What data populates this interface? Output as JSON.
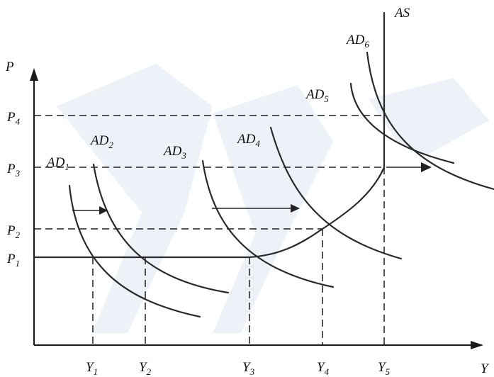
{
  "axes": {
    "y_label": "P",
    "x_label": "Y"
  },
  "price_levels": [
    {
      "main": "P",
      "sub": "1"
    },
    {
      "main": "P",
      "sub": "2"
    },
    {
      "main": "P",
      "sub": "3"
    },
    {
      "main": "P",
      "sub": "4"
    }
  ],
  "output_levels": [
    {
      "main": "Y",
      "sub": "1"
    },
    {
      "main": "Y",
      "sub": "2"
    },
    {
      "main": "Y",
      "sub": "3"
    },
    {
      "main": "Y",
      "sub": "4"
    },
    {
      "main": "Y",
      "sub": "5"
    }
  ],
  "supply_curve": {
    "label": "AS"
  },
  "demand_curves": [
    {
      "main": "AD",
      "sub": "1"
    },
    {
      "main": "AD",
      "sub": "2"
    },
    {
      "main": "AD",
      "sub": "3"
    },
    {
      "main": "AD",
      "sub": "4"
    },
    {
      "main": "AD",
      "sub": "5"
    },
    {
      "main": "AD",
      "sub": "6"
    }
  ]
}
